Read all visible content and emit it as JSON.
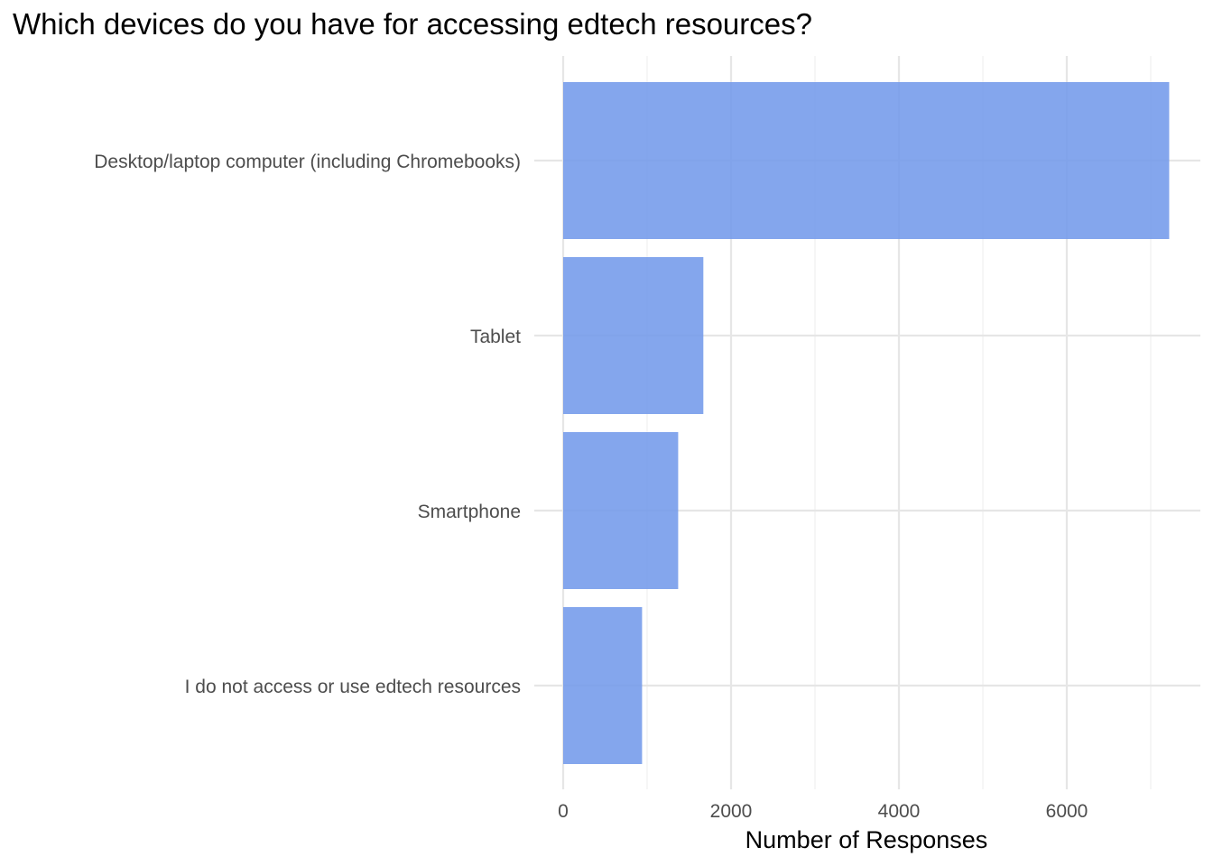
{
  "chart_data": {
    "type": "bar",
    "orientation": "horizontal",
    "title": "Which devices do you have for accessing edtech resources?",
    "xlabel": "Number of Responses",
    "ylabel": "",
    "categories": [
      "Desktop/laptop computer (including Chromebooks)",
      "Tablet",
      "Smartphone",
      "I do not access or use edtech resources"
    ],
    "values": [
      7220,
      1670,
      1370,
      940
    ],
    "xlim": [
      0,
      7550
    ],
    "x_ticks": [
      0,
      2000,
      4000,
      6000
    ],
    "x_tick_labels": [
      "0",
      "2000",
      "4000",
      "6000"
    ],
    "bar_color": "#6f97ea",
    "grid": true,
    "legend": "none"
  }
}
